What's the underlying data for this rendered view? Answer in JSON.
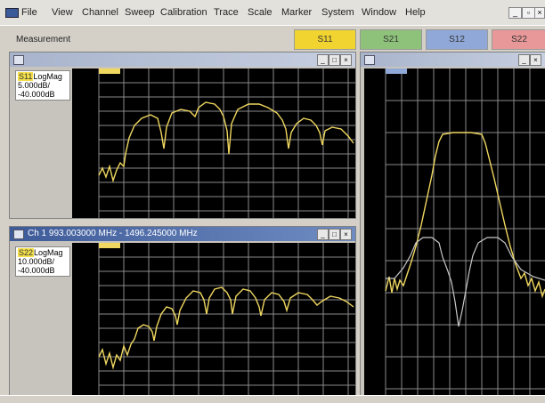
{
  "menubar": {
    "items": [
      "File",
      "View",
      "Channel",
      "Sweep",
      "Calibration",
      "Trace",
      "Scale",
      "Marker",
      "System",
      "Window",
      "Help"
    ]
  },
  "toolbar": {
    "measurement_label": "Measurement",
    "params": [
      {
        "label": "S11",
        "color": "#f1d430"
      },
      {
        "label": "S21",
        "color": "#8ec27a"
      },
      {
        "label": "S12",
        "color": "#8fa8d8"
      },
      {
        "label": "S22",
        "color": "#e89898"
      }
    ]
  },
  "windows": {
    "top_left": {
      "title": "",
      "trace": "S11",
      "format": "LogMag",
      "scale": "5.000dB/",
      "ref": "-40.000dB"
    },
    "bottom_left": {
      "title": "Ch 1 993.003000 MHz - 1496.245000 MHz",
      "trace": "S22",
      "format": "LogMag",
      "scale": "10.000dB/",
      "ref": "-40.000dB"
    },
    "right": {
      "title": ""
    }
  },
  "colors": {
    "trace_yellow": "#f0d860",
    "trace_gray": "#c8c8c8",
    "grid": "#8a8a8a",
    "plot_bg": "#000000"
  }
}
